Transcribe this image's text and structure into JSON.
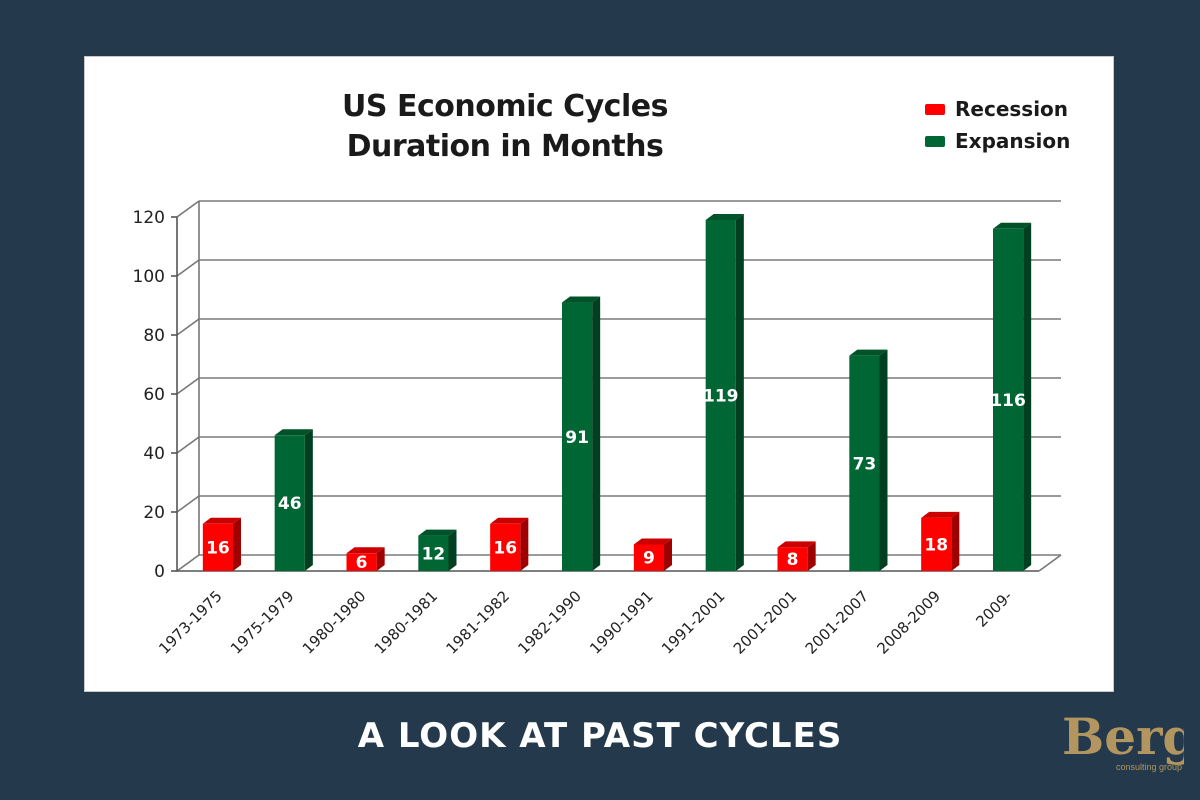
{
  "chart_data": {
    "type": "bar",
    "title_lines": [
      "US Economic Cycles",
      "Duration in Months"
    ],
    "categories": [
      "1973-1975",
      "1975-1979",
      "1980-1980",
      "1980-1981",
      "1981-1982",
      "1982-1990",
      "1990-1991",
      "1991-2001",
      "2001-2001",
      "2001-2007",
      "2008-2009",
      "2009-"
    ],
    "values": [
      16,
      46,
      6,
      12,
      16,
      91,
      9,
      119,
      8,
      73,
      18,
      116
    ],
    "phases": [
      "Recession",
      "Expansion",
      "Recession",
      "Expansion",
      "Recession",
      "Expansion",
      "Recession",
      "Expansion",
      "Recession",
      "Expansion",
      "Recession",
      "Expansion"
    ],
    "series": [
      {
        "name": "Recession",
        "color": "#ff0000"
      },
      {
        "name": "Expansion",
        "color": "#006633"
      }
    ],
    "yticks": [
      0,
      20,
      40,
      60,
      80,
      100,
      120
    ],
    "ylim": [
      0,
      120
    ],
    "grid": true,
    "legend_position": "top-right",
    "bar_style": "3d"
  },
  "caption": "A LOOK AT PAST CYCLES",
  "logo": {
    "text_main": "Berg",
    "text_sub": "consulting group",
    "icon": "berg-logo"
  }
}
